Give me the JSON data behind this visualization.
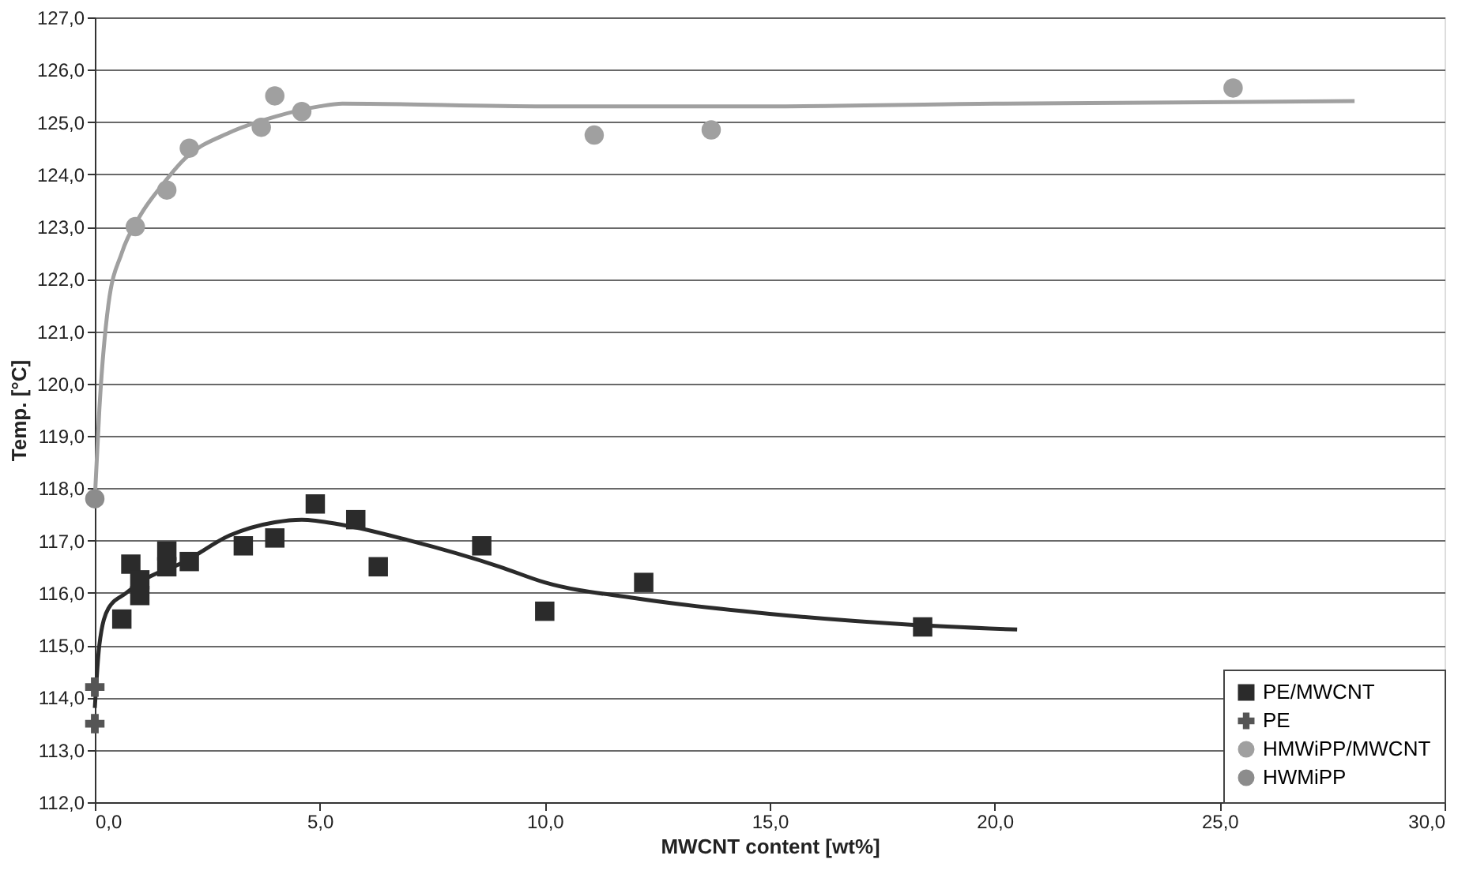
{
  "chart_data": {
    "type": "scatter",
    "xlabel": "MWCNT content [wt%]",
    "ylabel": "Temp. [°C]",
    "xlim": [
      0,
      30
    ],
    "ylim": [
      112,
      127
    ],
    "xticks": [
      {
        "value": 0,
        "label": "0,0"
      },
      {
        "value": 5,
        "label": "5,0"
      },
      {
        "value": 10,
        "label": "10,0"
      },
      {
        "value": 15,
        "label": "15,0"
      },
      {
        "value": 20,
        "label": "20,0"
      },
      {
        "value": 25,
        "label": "25,0"
      },
      {
        "value": 30,
        "label": "30,0"
      }
    ],
    "yticks": [
      {
        "value": 112,
        "label": "112,0"
      },
      {
        "value": 113,
        "label": "113,0"
      },
      {
        "value": 114,
        "label": "114,0"
      },
      {
        "value": 115,
        "label": "115,0"
      },
      {
        "value": 116,
        "label": "116,0"
      },
      {
        "value": 117,
        "label": "117,0"
      },
      {
        "value": 118,
        "label": "118,0"
      },
      {
        "value": 119,
        "label": "119,0"
      },
      {
        "value": 120,
        "label": "120,0"
      },
      {
        "value": 121,
        "label": "121,0"
      },
      {
        "value": 122,
        "label": "122,0"
      },
      {
        "value": 123,
        "label": "123,0"
      },
      {
        "value": 124,
        "label": "124,0"
      },
      {
        "value": 125,
        "label": "125,0"
      },
      {
        "value": 126,
        "label": "126,0"
      },
      {
        "value": 127,
        "label": "127,0"
      }
    ],
    "grid": "y",
    "legend": "bottom right",
    "series": [
      {
        "type": "line",
        "marker": "none",
        "color": "#a0a0a0",
        "x": [
          0,
          0.1,
          0.3,
          0.6,
          1,
          1.5,
          2,
          3,
          4,
          5,
          5.5,
          10,
          15,
          20,
          28
        ],
        "values": [
          117.8,
          119.5,
          121.5,
          122.5,
          123.2,
          123.8,
          124.3,
          124.8,
          125.1,
          125.3,
          125.35,
          125.3,
          125.3,
          125.35,
          125.4
        ]
      },
      {
        "type": "line",
        "marker": "none",
        "color": "#2b2b2b",
        "x": [
          0,
          0.1,
          0.3,
          0.7,
          1,
          2,
          3,
          4,
          4.6,
          5.5,
          7,
          9,
          10,
          12,
          15,
          18,
          20.5
        ],
        "values": [
          113.8,
          115.0,
          115.7,
          116.0,
          116.2,
          116.6,
          117.1,
          117.35,
          117.4,
          117.3,
          117.0,
          116.5,
          116.2,
          115.9,
          115.6,
          115.4,
          115.3
        ]
      },
      {
        "name": "PE/MWCNT",
        "marker": "square",
        "color": "#2b2b2b",
        "x": [
          0.6,
          0.8,
          1.0,
          1.0,
          1.6,
          1.6,
          2.1,
          3.3,
          4.0,
          4.9,
          5.8,
          6.3,
          8.6,
          10.0,
          12.2,
          18.4
        ],
        "values": [
          115.5,
          116.55,
          116.25,
          115.95,
          116.8,
          116.5,
          116.6,
          116.9,
          117.05,
          117.7,
          117.4,
          116.5,
          116.9,
          115.65,
          116.2,
          115.35
        ]
      },
      {
        "name": "PE",
        "marker": "cross",
        "color": "#555555",
        "x": [
          0,
          0
        ],
        "values": [
          114.2,
          113.5
        ]
      },
      {
        "name": "HMWiPP/MWCNT",
        "marker": "circle",
        "color": "#a0a0a0",
        "x": [
          0.9,
          1.6,
          2.1,
          3.7,
          4.0,
          4.6,
          11.1,
          13.7,
          25.3
        ],
        "values": [
          123.0,
          123.7,
          124.5,
          124.9,
          125.5,
          125.2,
          124.75,
          124.85,
          125.65
        ]
      },
      {
        "name": "HWMiPP",
        "marker": "circle",
        "color": "#8c8c8c",
        "x": [
          0
        ],
        "values": [
          117.8
        ]
      }
    ]
  }
}
